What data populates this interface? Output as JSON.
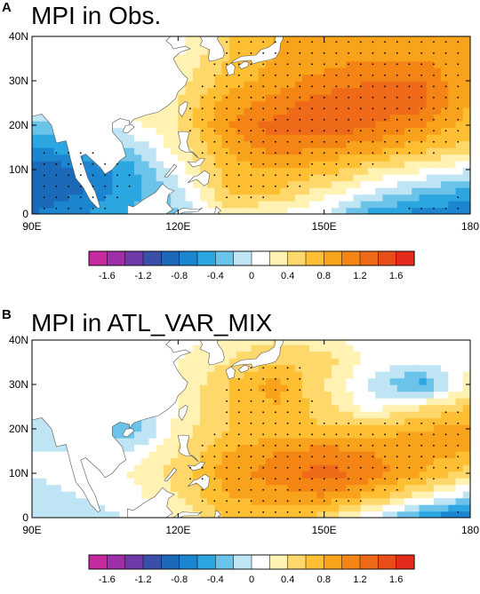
{
  "panels": [
    {
      "letter": "A",
      "title": "MPI in Obs.",
      "chart_data": {
        "type": "heatmap",
        "title": "MPI in Obs.",
        "xlabel": "",
        "ylabel": "",
        "xlim": [
          90,
          180
        ],
        "ylim": [
          0,
          40
        ],
        "x_ticks": [
          "90E",
          "120E",
          "150E",
          "180"
        ],
        "y_ticks": [
          "0",
          "10N",
          "20N",
          "30N",
          "40N"
        ],
        "x_tick_values": [
          90,
          120,
          150,
          180
        ],
        "y_tick_values": [
          0,
          10,
          20,
          30,
          40
        ],
        "colorbar_labels": [
          "-1.6",
          "-1.2",
          "-0.8",
          "-0.4",
          "0",
          "0.4",
          "0.8",
          "1.2",
          "1.6"
        ],
        "lon": [
          90,
          100,
          110,
          120,
          130,
          140,
          150,
          160,
          170,
          180
        ],
        "lat": [
          0,
          5,
          10,
          15,
          20,
          25,
          30,
          35,
          40
        ],
        "values": [
          [
            -0.8,
            -0.6,
            -0.4,
            -0.2,
            0.3,
            0.2,
            0.0,
            -0.5,
            -0.7,
            -0.8
          ],
          [
            -1.0,
            -0.8,
            -0.5,
            -0.1,
            0.6,
            0.6,
            0.3,
            0.0,
            -0.3,
            -0.5
          ],
          [
            -1.0,
            -0.8,
            -0.5,
            0.1,
            0.7,
            0.8,
            0.7,
            0.4,
            0.2,
            0.0
          ],
          [
            -0.6,
            -0.5,
            -0.2,
            0.3,
            0.8,
            1.1,
            1.0,
            0.9,
            0.7,
            0.5
          ],
          [
            -0.3,
            -0.2,
            0.1,
            0.4,
            1.0,
            1.3,
            1.4,
            1.2,
            1.0,
            0.7
          ],
          [
            0.0,
            0.1,
            0.3,
            0.4,
            0.9,
            1.1,
            1.3,
            1.4,
            1.3,
            0.8
          ],
          [
            0.2,
            0.3,
            0.4,
            0.3,
            0.7,
            0.9,
            1.1,
            1.2,
            1.2,
            0.8
          ],
          [
            0.1,
            0.2,
            0.3,
            0.2,
            0.6,
            0.8,
            0.9,
            1.0,
            1.0,
            0.8
          ],
          [
            0.1,
            0.2,
            0.2,
            0.1,
            0.6,
            0.8,
            0.9,
            0.9,
            0.9,
            0.8
          ]
        ],
        "stipple_threshold": 0.5
      }
    },
    {
      "letter": "B",
      "title": "MPI in ATL_VAR_MIX",
      "chart_data": {
        "type": "heatmap",
        "title": "MPI in ATL_VAR_MIX",
        "xlabel": "",
        "ylabel": "",
        "xlim": [
          90,
          180
        ],
        "ylim": [
          0,
          40
        ],
        "x_ticks": [
          "90E",
          "120E",
          "150E",
          "180"
        ],
        "y_ticks": [
          "0",
          "10N",
          "20N",
          "30N",
          "40N"
        ],
        "x_tick_values": [
          90,
          120,
          150,
          180
        ],
        "y_tick_values": [
          0,
          10,
          20,
          30,
          40
        ],
        "colorbar_labels": [
          "-1.6",
          "-1.2",
          "-0.8",
          "-0.4",
          "0",
          "0.4",
          "0.8",
          "1.2",
          "1.6"
        ],
        "lon": [
          90,
          100,
          110,
          120,
          130,
          140,
          150,
          160,
          170,
          180
        ],
        "lat": [
          0,
          5,
          10,
          15,
          20,
          25,
          30,
          35,
          40
        ],
        "values": [
          [
            -0.2,
            -0.1,
            0.0,
            0.2,
            0.6,
            0.7,
            0.5,
            0.0,
            -0.6,
            -0.9
          ],
          [
            -0.1,
            0.0,
            0.1,
            0.4,
            0.8,
            0.9,
            1.0,
            0.7,
            0.3,
            -0.1
          ],
          [
            0.0,
            0.1,
            0.2,
            0.5,
            0.9,
            1.1,
            1.3,
            1.1,
            0.8,
            0.5
          ],
          [
            0.0,
            0.0,
            0.0,
            0.4,
            0.8,
            1.0,
            1.1,
            1.0,
            0.9,
            0.8
          ],
          [
            -0.1,
            -0.3,
            -0.4,
            0.3,
            0.6,
            0.7,
            0.6,
            0.7,
            0.8,
            0.9
          ],
          [
            0.0,
            -0.1,
            -0.2,
            0.2,
            0.6,
            0.8,
            0.5,
            0.1,
            0.4,
            0.6
          ],
          [
            0.0,
            0.0,
            0.0,
            0.2,
            0.6,
            0.9,
            0.4,
            -0.1,
            -0.5,
            0.3
          ],
          [
            0.0,
            0.0,
            0.0,
            0.2,
            0.4,
            0.6,
            0.5,
            0.1,
            0.0,
            0.2
          ],
          [
            0.0,
            0.0,
            0.0,
            0.1,
            0.3,
            0.4,
            0.3,
            0.1,
            0.0,
            0.1
          ]
        ],
        "stipple_threshold": 0.55
      }
    }
  ],
  "colorscale": {
    "levels": [
      -1.8,
      -1.6,
      -1.4,
      -1.2,
      -1.0,
      -0.8,
      -0.6,
      -0.4,
      -0.2,
      0.0,
      0.2,
      0.4,
      0.6,
      0.8,
      1.0,
      1.2,
      1.4,
      1.6,
      1.8
    ],
    "colors": [
      "#c62a9f",
      "#9e2fa8",
      "#6e3aa8",
      "#3c4fa8",
      "#1b69b8",
      "#1b86cf",
      "#2ba6e0",
      "#6cc3ea",
      "#bfe5f5",
      "#ffffff",
      "#fff2b3",
      "#ffd86b",
      "#ffbf33",
      "#f9a21b",
      "#f48514",
      "#ee6a18",
      "#e74e1a",
      "#e42b1b"
    ],
    "land_color": "#ffffff",
    "coast_color": "#555555"
  }
}
